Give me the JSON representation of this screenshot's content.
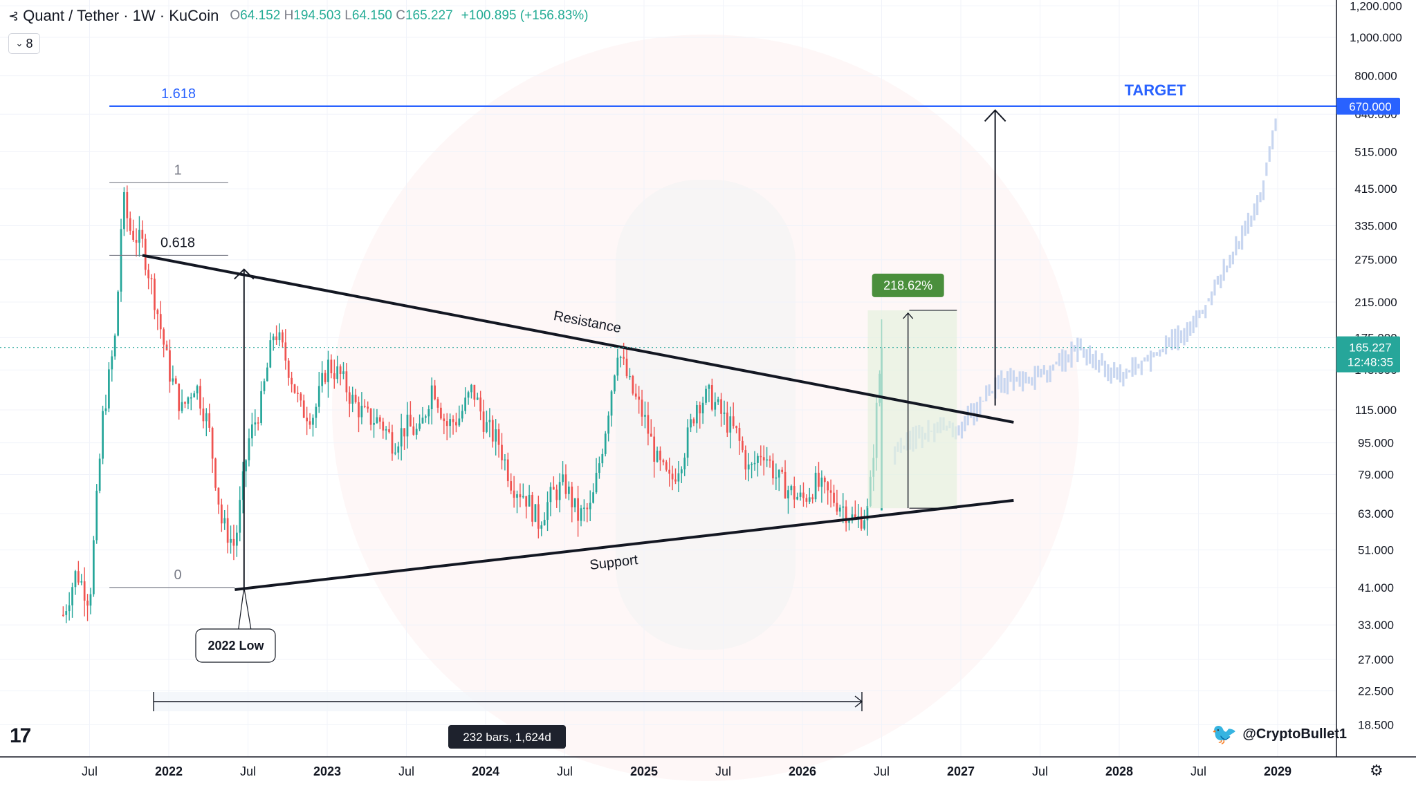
{
  "header": {
    "symbol": "Quant / Tether · 1W · KuCoin",
    "o_label": "O",
    "o_value": "64.152",
    "h_label": "H",
    "h_value": "194.503",
    "l_label": "L",
    "l_value": "64.150",
    "c_label": "C",
    "c_value": "165.227",
    "change": "+100.895 (+156.83%)"
  },
  "indicator_toggle": {
    "count": "8"
  },
  "price_axis": {
    "ticks": [
      "1,200.000",
      "1,000.000",
      "800.000",
      "640.000",
      "515.000",
      "415.000",
      "335.000",
      "275.000",
      "215.000",
      "175.000",
      "145.000",
      "115.000",
      "95.000",
      "79.000",
      "63.000",
      "51.000",
      "41.000",
      "33.000",
      "27.000",
      "22.500",
      "18.500"
    ],
    "target_tag": "670.000",
    "last_price_tag": "165.227",
    "countdown": "12:48:35"
  },
  "time_axis": {
    "labels": [
      "Jul",
      "2022",
      "Jul",
      "2023",
      "Jul",
      "2024",
      "Jul",
      "2025",
      "Jul",
      "2026",
      "Jul",
      "2027",
      "Jul",
      "2028",
      "Jul",
      "2029"
    ]
  },
  "annotations": {
    "fib_1618": "1.618",
    "target": "TARGET",
    "fib_1": "1",
    "fib_0618": "0.618",
    "fib_0": "0",
    "resistance": "Resistance",
    "support": "Support",
    "low_callout": "2022 Low",
    "measure_pct": "218.62%",
    "date_range": "232 bars, 1,624d"
  },
  "watermark": {
    "handle": "@CryptoBullet1"
  },
  "colors": {
    "up": "#26a69a",
    "down": "#ef5350",
    "target_line": "#2962ff",
    "projection": "#c8d6f0",
    "measure_fill": "#e3f1dd",
    "measure_label": "#4a8f3c",
    "last_price": "#26a69a"
  },
  "chart_data": {
    "type": "candlestick",
    "timeframe": "1W",
    "scale": "log",
    "y_range": [
      18.5,
      1200
    ],
    "x_range": [
      "2021-05",
      "2029-03"
    ],
    "last_close": 165.227,
    "target_price": 670,
    "fib_levels": [
      {
        "label": "1",
        "price": 430
      },
      {
        "label": "0.618",
        "price": 282
      },
      {
        "label": "0",
        "price": 41
      },
      {
        "label": "1.618",
        "price": 670
      }
    ],
    "resistance_line": [
      {
        "x": "2021-11",
        "y": 282
      },
      {
        "x": "2027-05",
        "y": 107
      }
    ],
    "support_line": [
      {
        "x": "2022-06",
        "y": 40.5
      },
      {
        "x": "2027-05",
        "y": 68
      }
    ],
    "measured_move_pct": 218.62,
    "price_path": [
      {
        "x": "2021-05",
        "y": 35
      },
      {
        "x": "2021-06",
        "y": 45
      },
      {
        "x": "2021-07",
        "y": 38
      },
      {
        "x": "2021-08",
        "y": 110
      },
      {
        "x": "2021-09",
        "y": 180
      },
      {
        "x": "2021-09.5",
        "y": 400
      },
      {
        "x": "2021-10",
        "y": 330
      },
      {
        "x": "2021-11",
        "y": 300
      },
      {
        "x": "2021-12",
        "y": 215
      },
      {
        "x": "2022-01",
        "y": 145
      },
      {
        "x": "2022-02",
        "y": 115
      },
      {
        "x": "2022-03",
        "y": 135
      },
      {
        "x": "2022-04",
        "y": 105
      },
      {
        "x": "2022-05",
        "y": 60
      },
      {
        "x": "2022-06",
        "y": 52
      },
      {
        "x": "2022-07",
        "y": 95
      },
      {
        "x": "2022-08",
        "y": 120
      },
      {
        "x": "2022-09",
        "y": 185
      },
      {
        "x": "2022-10",
        "y": 150
      },
      {
        "x": "2022-11",
        "y": 115
      },
      {
        "x": "2022-12",
        "y": 112
      },
      {
        "x": "2023-01",
        "y": 150
      },
      {
        "x": "2023-02",
        "y": 140
      },
      {
        "x": "2023-03",
        "y": 120
      },
      {
        "x": "2023-04",
        "y": 110
      },
      {
        "x": "2023-05",
        "y": 108
      },
      {
        "x": "2023-06",
        "y": 95
      },
      {
        "x": "2023-07",
        "y": 105
      },
      {
        "x": "2023-08",
        "y": 100
      },
      {
        "x": "2023-09",
        "y": 135
      },
      {
        "x": "2023-10",
        "y": 105
      },
      {
        "x": "2023-11",
        "y": 110
      },
      {
        "x": "2023-12",
        "y": 130
      },
      {
        "x": "2024-01",
        "y": 105
      },
      {
        "x": "2024-02",
        "y": 95
      },
      {
        "x": "2024-03",
        "y": 75
      },
      {
        "x": "2024-04",
        "y": 70
      },
      {
        "x": "2024-05",
        "y": 60
      },
      {
        "x": "2024-06",
        "y": 70
      },
      {
        "x": "2024-07",
        "y": 75
      },
      {
        "x": "2024-08",
        "y": 62
      },
      {
        "x": "2024-09",
        "y": 65
      },
      {
        "x": "2024-10",
        "y": 100
      },
      {
        "x": "2024-11",
        "y": 165
      },
      {
        "x": "2024-12",
        "y": 130
      },
      {
        "x": "2025-01",
        "y": 110
      },
      {
        "x": "2025-02",
        "y": 85
      },
      {
        "x": "2025-03",
        "y": 75
      },
      {
        "x": "2025-04",
        "y": 90
      },
      {
        "x": "2025-05",
        "y": 120
      },
      {
        "x": "2025-06",
        "y": 125
      },
      {
        "x": "2025-07",
        "y": 110
      },
      {
        "x": "2025-08",
        "y": 100
      },
      {
        "x": "2025-09",
        "y": 80
      },
      {
        "x": "2025-10",
        "y": 92
      },
      {
        "x": "2025-11",
        "y": 78
      },
      {
        "x": "2025-12",
        "y": 72
      },
      {
        "x": "2026-01",
        "y": 68
      },
      {
        "x": "2026-02",
        "y": 75
      },
      {
        "x": "2026-03",
        "y": 70
      },
      {
        "x": "2026-04",
        "y": 66
      },
      {
        "x": "2026-05",
        "y": 60
      },
      {
        "x": "2026-06",
        "y": 64
      },
      {
        "x": "2026-07",
        "y": 165
      }
    ],
    "projection_path": [
      {
        "x": "2026-08",
        "y": 90
      },
      {
        "x": "2026-10",
        "y": 100
      },
      {
        "x": "2027-01",
        "y": 105
      },
      {
        "x": "2027-04",
        "y": 135
      },
      {
        "x": "2027-07",
        "y": 140
      },
      {
        "x": "2027-10",
        "y": 165
      },
      {
        "x": "2028-01",
        "y": 140
      },
      {
        "x": "2028-04",
        "y": 160
      },
      {
        "x": "2028-07",
        "y": 195
      },
      {
        "x": "2028-10",
        "y": 300
      },
      {
        "x": "2028-12",
        "y": 420
      },
      {
        "x": "2029-01",
        "y": 660
      }
    ]
  }
}
